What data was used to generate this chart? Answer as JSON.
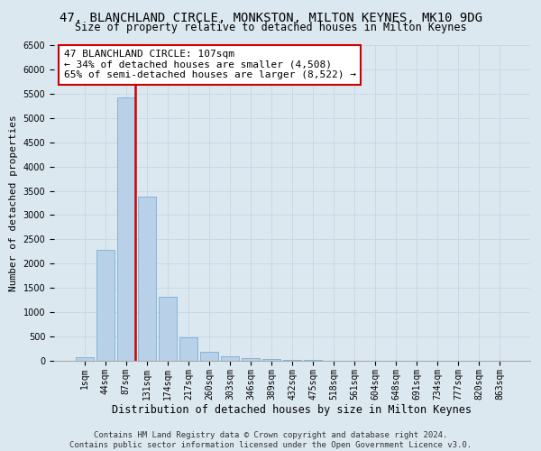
{
  "title": "47, BLANCHLAND CIRCLE, MONKSTON, MILTON KEYNES, MK10 9DG",
  "subtitle": "Size of property relative to detached houses in Milton Keynes",
  "xlabel": "Distribution of detached houses by size in Milton Keynes",
  "ylabel": "Number of detached properties",
  "footer_line1": "Contains HM Land Registry data © Crown copyright and database right 2024.",
  "footer_line2": "Contains public sector information licensed under the Open Government Licence v3.0.",
  "bar_labels": [
    "1sqm",
    "44sqm",
    "87sqm",
    "131sqm",
    "174sqm",
    "217sqm",
    "260sqm",
    "303sqm",
    "346sqm",
    "389sqm",
    "432sqm",
    "475sqm",
    "518sqm",
    "561sqm",
    "604sqm",
    "648sqm",
    "691sqm",
    "734sqm",
    "777sqm",
    "820sqm",
    "863sqm"
  ],
  "bar_values": [
    70,
    2280,
    5430,
    3380,
    1310,
    480,
    185,
    90,
    55,
    30,
    15,
    10,
    5,
    3,
    2,
    1,
    1,
    0,
    0,
    0,
    0
  ],
  "bar_color": "#b8d0e8",
  "bar_edge_color": "#7aafd4",
  "highlight_bar_index": 2,
  "highlight_line_color": "#cc0000",
  "annotation_text": "47 BLANCHLAND CIRCLE: 107sqm\n← 34% of detached houses are smaller (4,508)\n65% of semi-detached houses are larger (8,522) →",
  "annotation_box_color": "white",
  "annotation_box_edgecolor": "#cc0000",
  "ylim": [
    0,
    6500
  ],
  "yticks": [
    0,
    500,
    1000,
    1500,
    2000,
    2500,
    3000,
    3500,
    4000,
    4500,
    5000,
    5500,
    6000,
    6500
  ],
  "grid_color": "#c8d8e8",
  "background_color": "#dce8f0",
  "title_fontsize": 10,
  "subtitle_fontsize": 8.5,
  "annotation_fontsize": 8,
  "xlabel_fontsize": 8.5,
  "ylabel_fontsize": 8,
  "tick_fontsize": 7,
  "footer_fontsize": 6.5
}
